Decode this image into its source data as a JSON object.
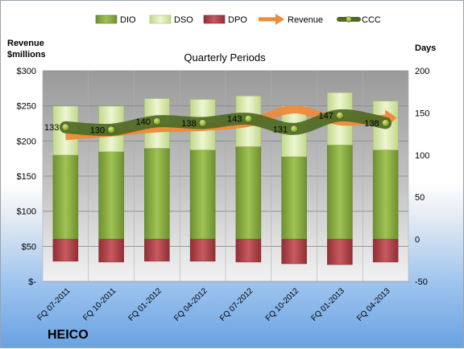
{
  "chart_data": {
    "type": "bar",
    "title": "Quarterly Periods",
    "company": "HEICO",
    "left_axis": {
      "title_line1": "Revenue",
      "title_line2": "$millions",
      "range": [
        0,
        300
      ],
      "ticks": [
        0,
        50,
        100,
        150,
        200,
        250,
        300
      ],
      "tick_labels": [
        "$-",
        "$50",
        "$100",
        "$150",
        "$200",
        "$250",
        "$300"
      ]
    },
    "right_axis": {
      "title": "Days",
      "range": [
        -50,
        200
      ],
      "ticks": [
        -50,
        0,
        50,
        100,
        150,
        200
      ],
      "tick_labels": [
        "-50",
        "0",
        "50",
        "100",
        "150",
        "200"
      ]
    },
    "grid": true,
    "legend_position": "top",
    "categories": [
      "FQ 07-2011",
      "FQ 10-2011",
      "FQ 01-2012",
      "FQ 04-2012",
      "FQ 07-2012",
      "FQ 10-2012",
      "FQ 01-2013",
      "FQ 04-2013"
    ],
    "series": [
      {
        "name": "DIO",
        "axis": "right",
        "kind": "stacked-bar",
        "color": "#8db040",
        "values": [
          100,
          104,
          108,
          106,
          110,
          98,
          112,
          106
        ]
      },
      {
        "name": "DSO",
        "axis": "right",
        "kind": "stacked-bar",
        "color": "#d8eaa8",
        "values": [
          58,
          54,
          59,
          60,
          60,
          60,
          62,
          58
        ]
      },
      {
        "name": "DPO",
        "axis": "right",
        "kind": "negative-bar",
        "color": "#b5444a",
        "values": [
          -26,
          -27,
          -26,
          -26,
          -27,
          -29,
          -30,
          -27
        ]
      },
      {
        "name": "Revenue",
        "axis": "left",
        "kind": "line",
        "color": "#ee8a3a",
        "values": [
          207,
          212,
          218,
          220,
          226,
          245,
          228,
          232
        ]
      },
      {
        "name": "CCC",
        "axis": "right",
        "kind": "line",
        "color": "#4e6a24",
        "values": [
          133,
          130,
          140,
          138,
          143,
          131,
          147,
          138
        ]
      }
    ],
    "data_labels": [
      "133",
      "130",
      "140",
      "138",
      "143",
      "131",
      "147",
      "138"
    ]
  }
}
